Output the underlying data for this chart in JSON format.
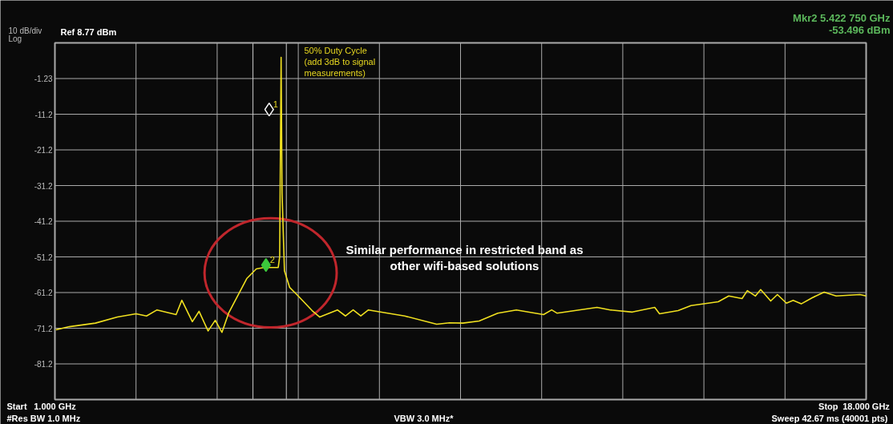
{
  "chart_data": {
    "type": "line",
    "annotations": [
      "10 dB/div",
      "Log",
      "Ref 8.77 dBm",
      "Mkr2 5.422 750 GHz",
      "-53.496 dBm",
      "50% Duty Cycle\n(add 3dB to signal\nmeasurements)",
      "Similar performance in restricted band as\nother wifi-based solutions",
      "Start",
      "#Res BW 1.0 MHz",
      "VBW 3.0 MHz*",
      "Stop",
      "Sweep  42.67 ms (40001 pts)"
    ],
    "series": [
      {
        "color": "#f0e020",
        "line_style": "solid",
        "x": [
          1.02,
          1.3,
          1.85,
          2.31,
          2.7,
          2.92,
          3.14,
          3.54,
          3.66,
          3.88,
          4.02,
          4.21,
          4.36,
          4.5,
          4.64,
          5.02,
          5.22,
          5.38,
          5.68,
          5.71,
          5.74,
          5.76,
          5.81,
          5.92,
          6.07,
          6.39,
          6.55,
          6.92,
          7.09,
          7.25,
          7.41,
          7.57,
          8.33,
          9.0,
          9.27,
          9.55,
          9.89,
          10.28,
          10.67,
          11.24,
          11.41,
          11.52,
          12.36,
          12.64,
          13.1,
          13.57,
          13.67,
          14.06,
          14.33,
          14.9,
          15.12,
          15.4,
          15.51,
          15.68,
          15.79,
          16.0,
          16.14,
          16.33,
          16.47,
          16.64,
          16.87,
          17.12,
          17.37,
          17.87,
          18.0
        ],
        "values": [
          -71.7,
          -70.8,
          -69.8,
          -68.1,
          -67.2,
          -67.8,
          -66.1,
          -67.4,
          -63.4,
          -69.4,
          -66.5,
          -72.0,
          -69.0,
          -72.4,
          -67.0,
          -57.3,
          -54.6,
          -54.2,
          -54.2,
          -51.2,
          4.7,
          -33.3,
          -55.1,
          -59.8,
          -61.8,
          -66.3,
          -68.1,
          -66.1,
          -67.8,
          -66.1,
          -67.8,
          -66.1,
          -67.8,
          -70.1,
          -69.7,
          -69.8,
          -69.2,
          -67.0,
          -66.1,
          -67.4,
          -66.1,
          -67.0,
          -65.4,
          -66.1,
          -66.7,
          -65.4,
          -67.2,
          -66.3,
          -64.9,
          -63.8,
          -62.2,
          -62.9,
          -60.7,
          -62.2,
          -60.4,
          -63.6,
          -61.8,
          -64.2,
          -63.4,
          -64.4,
          -62.7,
          -61.1,
          -62.2,
          -61.8,
          -62.2
        ]
      },
      {
        "name": "1",
        "type": "scatter",
        "marker": "diamond",
        "color": "#ffffff",
        "x": [
          5.49
        ],
        "values": [
          -9.9
        ]
      },
      {
        "name": "2",
        "type": "scatter",
        "marker": "diamond",
        "color": "#3cc83c",
        "x": [
          5.42275
        ],
        "values": [
          -53.496
        ]
      }
    ],
    "ref_lines": [
      {
        "axis": "x",
        "value": 5.15,
        "color": "#cccccc"
      },
      {
        "axis": "x",
        "value": 5.85,
        "color": "#cccccc"
      }
    ],
    "xlim": [
      1,
      18
    ],
    "ylim": [
      -91.23,
      8.77
    ],
    "xticks": [
      {
        "value": 1,
        "label": "1.000 GHz"
      },
      {
        "value": 2.7,
        "label": null
      },
      {
        "value": 4.4,
        "label": null
      },
      {
        "value": 6.1,
        "label": null
      },
      {
        "value": 7.8,
        "label": null
      },
      {
        "value": 9.5,
        "label": null
      },
      {
        "value": 11.2,
        "label": null
      },
      {
        "value": 12.9,
        "label": null
      },
      {
        "value": 14.6,
        "label": null
      },
      {
        "value": 16.3,
        "label": null
      },
      {
        "value": 18,
        "label": "18.000 GHz"
      }
    ],
    "yticks": [
      -1.23,
      {
        "value": -11.23,
        "label": "-11.2"
      },
      {
        "value": -21.23,
        "label": "-21.2"
      },
      {
        "value": -31.23,
        "label": "-31.2"
      },
      {
        "value": -41.23,
        "label": "-41.2"
      },
      {
        "value": -51.23,
        "label": "-51.2"
      },
      {
        "value": -61.23,
        "label": "-61.2"
      },
      {
        "value": -71.23,
        "label": "-71.2"
      },
      {
        "value": -81.23,
        "label": "-81.2"
      }
    ],
    "grid": true
  }
}
